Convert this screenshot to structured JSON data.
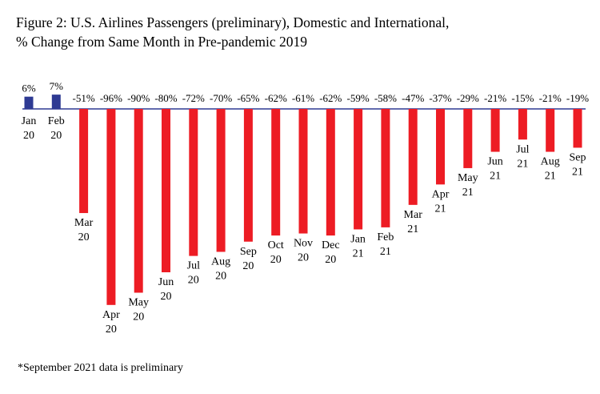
{
  "title_line1": "Figure 2: U.S. Airlines Passengers (preliminary), Domestic and International,",
  "title_line2": "% Change from Same Month in Pre-pandemic 2019",
  "footnote": "*September 2021 data is preliminary",
  "colors": {
    "positive": "#2e3a93",
    "negative": "#ed1c24",
    "axis": "#2e3a93"
  },
  "chart_data": {
    "type": "bar",
    "categories": [
      [
        "Jan",
        "20"
      ],
      [
        "Feb",
        "20"
      ],
      [
        "Mar",
        "20"
      ],
      [
        "Apr",
        "20"
      ],
      [
        "May",
        "20"
      ],
      [
        "Jun",
        "20"
      ],
      [
        "Jul",
        "20"
      ],
      [
        "Aug",
        "20"
      ],
      [
        "Sep",
        "20"
      ],
      [
        "Oct",
        "20"
      ],
      [
        "Nov",
        "20"
      ],
      [
        "Dec",
        "20"
      ],
      [
        "Jan",
        "21"
      ],
      [
        "Feb",
        "21"
      ],
      [
        "Mar",
        "21"
      ],
      [
        "Apr",
        "21"
      ],
      [
        "May",
        "21"
      ],
      [
        "Jun",
        "21"
      ],
      [
        "Jul",
        "21"
      ],
      [
        "Aug",
        "21"
      ],
      [
        "Sep",
        "21"
      ]
    ],
    "values": [
      6,
      7,
      -51,
      -96,
      -90,
      -80,
      -72,
      -70,
      -65,
      -62,
      -61,
      -62,
      -59,
      -58,
      -47,
      -37,
      -29,
      -21,
      -15,
      -21,
      -19
    ],
    "value_labels": [
      "6%",
      "7%",
      "-51%",
      "-96%",
      "-90%",
      "-80%",
      "-72%",
      "-70%",
      "-65%",
      "-62%",
      "-61%",
      "-62%",
      "-59%",
      "-58%",
      "-47%",
      "-37%",
      "-29%",
      "-21%",
      "-15%",
      "-21%",
      "-19%"
    ],
    "ylim": [
      -96,
      7
    ],
    "xlabel": "",
    "ylabel": "",
    "grid": false,
    "legend": "none"
  }
}
